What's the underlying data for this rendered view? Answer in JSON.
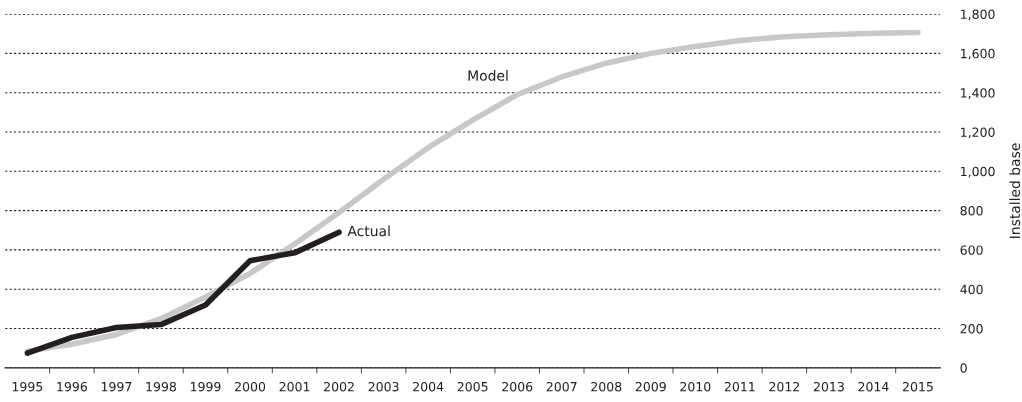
{
  "chart_data": {
    "type": "line",
    "ylabel": "Installed base",
    "x": [
      1995,
      1996,
      1997,
      1998,
      1999,
      2000,
      2001,
      2002,
      2003,
      2004,
      2005,
      2006,
      2007,
      2008,
      2009,
      2010,
      2011,
      2012,
      2013,
      2014,
      2015
    ],
    "series": [
      {
        "name": "Model",
        "color": "#c8c8c8",
        "values": [
          85,
          120,
          170,
          250,
          360,
          480,
          630,
          790,
          960,
          1120,
          1260,
          1390,
          1480,
          1550,
          1600,
          1635,
          1665,
          1685,
          1695,
          1702,
          1706
        ]
      },
      {
        "name": "Actual",
        "color": "#231f20",
        "values": [
          75,
          155,
          205,
          220,
          320,
          545,
          585,
          690,
          null,
          null,
          null,
          null,
          null,
          null,
          null,
          null,
          null,
          null,
          null,
          null,
          null
        ]
      }
    ],
    "xlim": [
      1994.5,
      2015.5
    ],
    "xticks": [
      1995,
      1996,
      1997,
      1998,
      1999,
      2000,
      2001,
      2002,
      2003,
      2004,
      2005,
      2006,
      2007,
      2008,
      2009,
      2010,
      2011,
      2012,
      2013,
      2014,
      2015
    ],
    "ylim": [
      0,
      1800
    ],
    "yticks": [
      {
        "value": 0,
        "label": "0"
      },
      {
        "value": 200,
        "label": "200"
      },
      {
        "value": 400,
        "label": "400"
      },
      {
        "value": 600,
        "label": "600"
      },
      {
        "value": 800,
        "label": "800"
      },
      {
        "value": 1000,
        "label": "1,000"
      },
      {
        "value": 1200,
        "label": "1,200"
      },
      {
        "value": 1400,
        "label": "1,400"
      },
      {
        "value": 1600,
        "label": "1,600"
      },
      {
        "value": 1800,
        "label": "1,800"
      }
    ],
    "grid": "y",
    "legend": false
  }
}
